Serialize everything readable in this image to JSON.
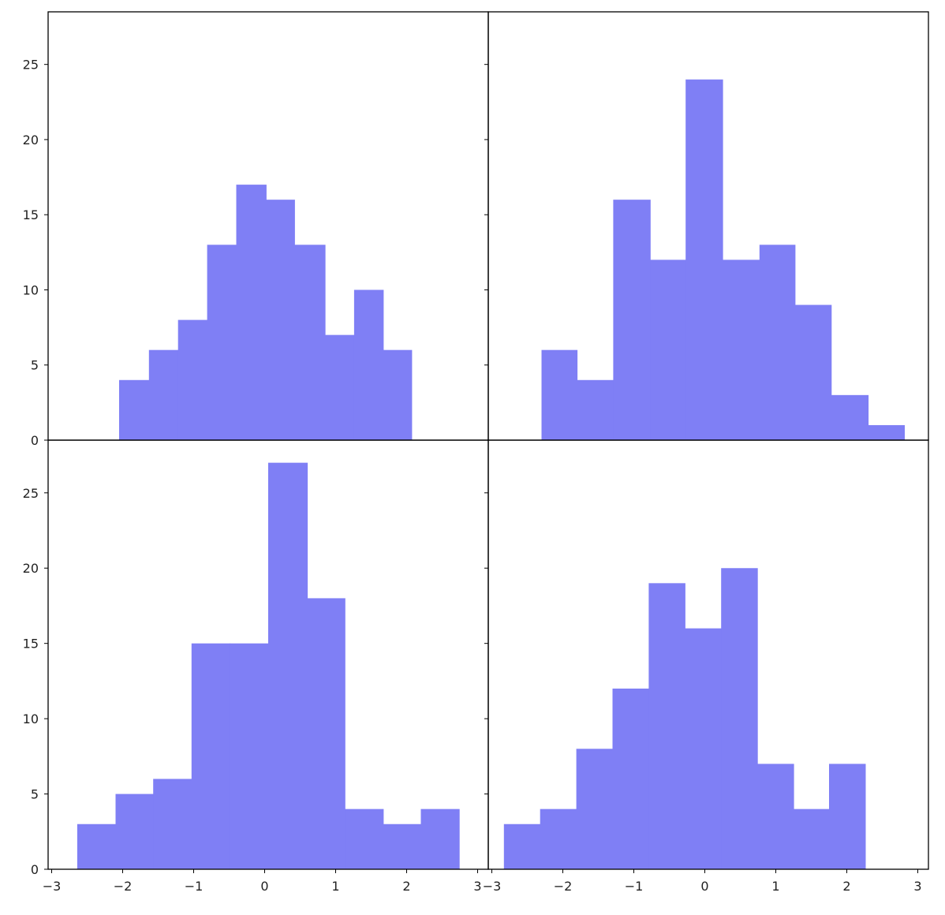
{
  "chart_data": {
    "type": "histogram",
    "layout": "2x2 grid, shared x and y axes, no spacing between subplots",
    "bar_color": "#7f7ff5",
    "xlim": [
      -3.05,
      3.15
    ],
    "ylim": [
      0,
      28.5
    ],
    "xticks": [
      -3,
      -2,
      -1,
      0,
      1,
      2,
      3
    ],
    "xtick_labels": [
      "−3",
      "−2",
      "−1",
      "0",
      "1",
      "2",
      "3"
    ],
    "yticks": [
      0,
      5,
      10,
      15,
      20,
      25
    ],
    "ytick_labels": [
      "0",
      "5",
      "10",
      "15",
      "20",
      "25"
    ],
    "title": "",
    "xlabel": "",
    "ylabel": "",
    "panels": [
      {
        "position": "top-left",
        "bin_edges": [
          -2.05,
          -1.63,
          -1.22,
          -0.81,
          -0.4,
          0.02,
          0.42,
          0.85,
          1.26,
          1.67,
          2.07
        ],
        "counts": [
          4,
          6,
          8,
          13,
          17,
          16,
          13,
          7,
          10,
          6
        ]
      },
      {
        "position": "top-right",
        "bin_edges": [
          -2.3,
          -1.8,
          -1.29,
          -0.77,
          -0.27,
          0.25,
          0.77,
          1.27,
          1.78,
          2.3,
          2.81
        ],
        "counts": [
          6,
          4,
          16,
          12,
          24,
          12,
          13,
          9,
          3,
          1
        ]
      },
      {
        "position": "bottom-left",
        "bin_edges": [
          -2.64,
          -2.1,
          -1.57,
          -1.03,
          -0.49,
          0.05,
          0.6,
          1.13,
          1.67,
          2.2,
          2.74
        ],
        "counts": [
          3,
          5,
          6,
          15,
          15,
          27,
          18,
          4,
          3,
          4
        ]
      },
      {
        "position": "bottom-right",
        "bin_edges": [
          -2.83,
          -2.32,
          -1.81,
          -1.3,
          -0.79,
          -0.28,
          0.23,
          0.74,
          1.25,
          1.75,
          2.26
        ],
        "counts": [
          3,
          4,
          8,
          12,
          19,
          16,
          20,
          7,
          4,
          7
        ]
      }
    ]
  }
}
